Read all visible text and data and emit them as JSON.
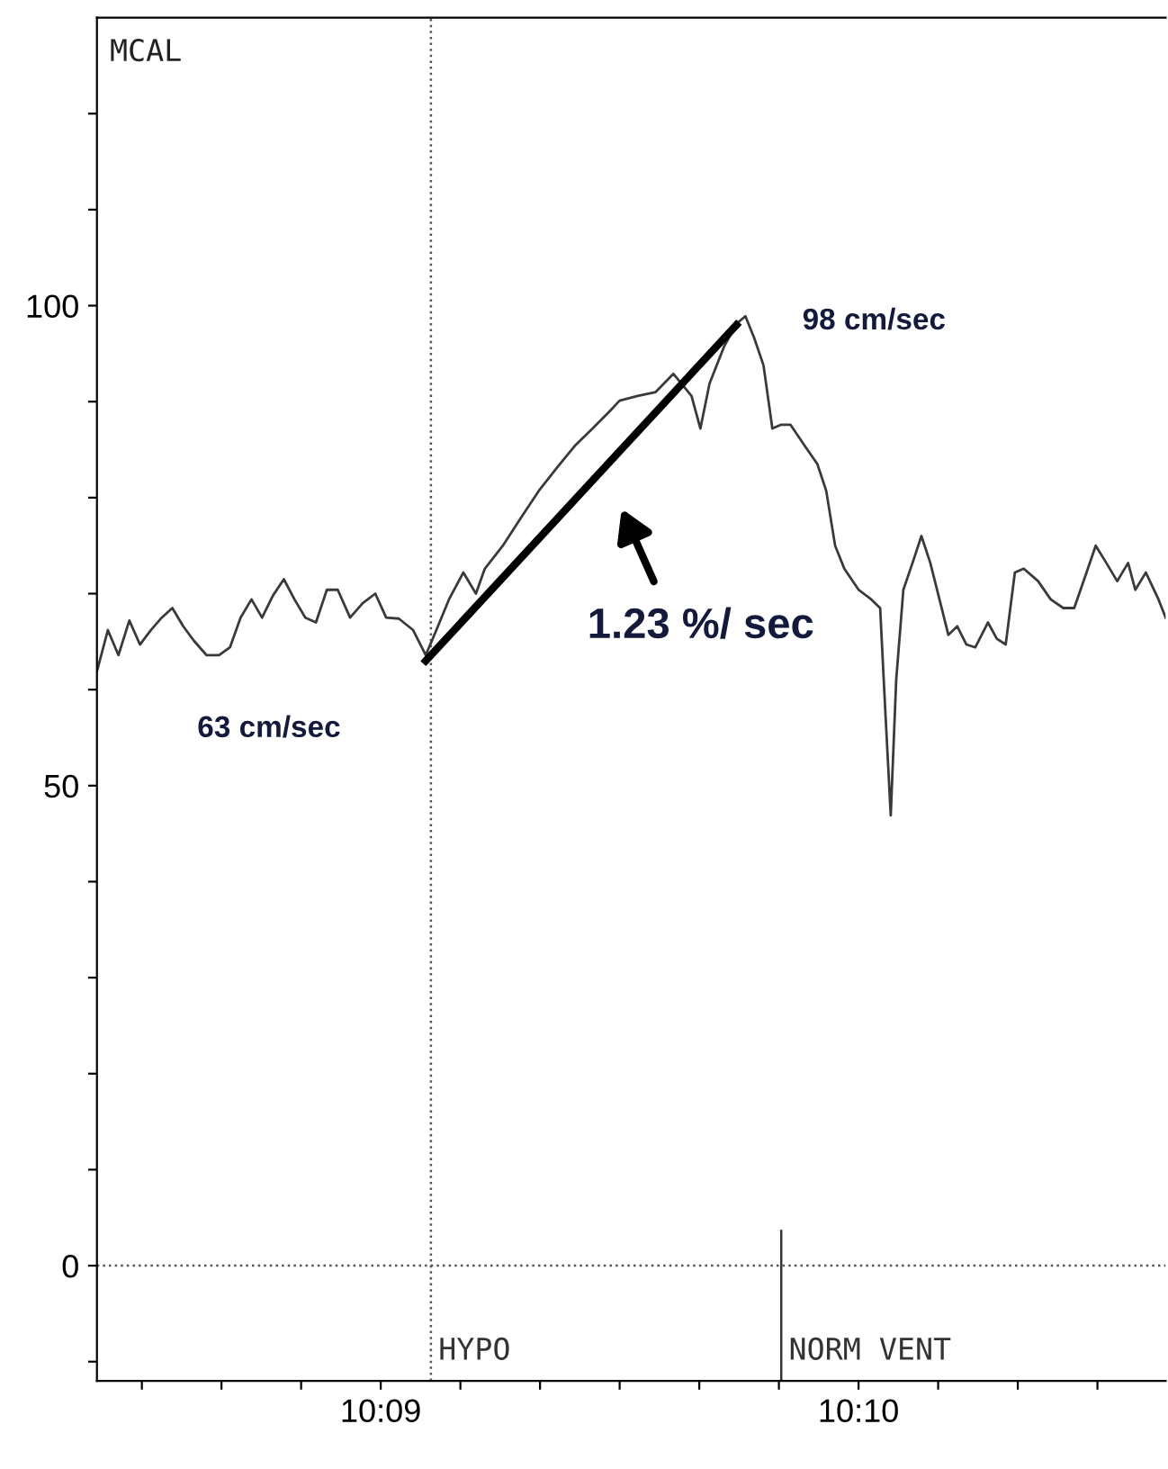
{
  "chart_data": {
    "type": "line",
    "ylabel": "MCAL",
    "xlim": [
      10.1401,
      10.17738
    ],
    "ylim": [
      -12,
      130
    ],
    "xticks": [
      {
        "value": 10.141667,
        "label": null
      },
      {
        "value": 10.144444,
        "label": null
      },
      {
        "value": 10.147222,
        "label": null
      },
      {
        "value": 10.15,
        "label": "10:09"
      },
      {
        "value": 10.152778,
        "label": null
      },
      {
        "value": 10.155556,
        "label": null
      },
      {
        "value": 10.158333,
        "label": null
      },
      {
        "value": 10.161111,
        "label": null
      },
      {
        "value": 10.163889,
        "label": null
      },
      {
        "value": 10.166667,
        "label": "10:10"
      },
      {
        "value": 10.169444,
        "label": null
      },
      {
        "value": 10.172222,
        "label": null
      },
      {
        "value": 10.175,
        "label": null
      }
    ],
    "yticks": [
      {
        "value": -10,
        "label": null
      },
      0,
      {
        "value": 10,
        "label": null
      },
      {
        "value": 20,
        "label": null
      },
      {
        "value": 30,
        "label": null
      },
      {
        "value": 40,
        "label": null
      },
      50,
      {
        "value": 60,
        "label": null
      },
      {
        "value": 70,
        "label": null
      },
      {
        "value": 80,
        "label": null
      },
      {
        "value": 90,
        "label": null
      },
      100,
      {
        "value": 110,
        "label": null
      },
      {
        "value": 120,
        "label": null
      }
    ],
    "grid": false,
    "legend": false,
    "marker": "none",
    "series": [
      {
        "color": "#3a3a3a",
        "line_style": "solid",
        "x": [
          10.1401,
          10.14048,
          10.14085,
          10.14123,
          10.1416,
          10.14198,
          10.14236,
          10.14273,
          10.14311,
          10.14348,
          10.14392,
          10.14436,
          10.14474,
          10.14511,
          10.14549,
          10.14586,
          10.14624,
          10.14662,
          10.14699,
          10.14737,
          10.14774,
          10.14812,
          10.1485,
          10.14893,
          10.14937,
          10.14981,
          10.15019,
          10.15063,
          10.15113,
          10.15157,
          10.15194,
          10.15238,
          10.15288,
          10.15332,
          10.15363,
          10.15426,
          10.15489,
          10.15551,
          10.15614,
          10.15677,
          10.15739,
          10.15802,
          10.15833,
          10.15896,
          10.15959,
          10.16021,
          10.16084,
          10.16115,
          10.16147,
          10.16197,
          10.16241,
          10.16272,
          10.16303,
          10.16335,
          10.16366,
          10.16397,
          10.16429,
          10.16479,
          10.16523,
          10.16554,
          10.16585,
          10.16617,
          10.16667,
          10.16711,
          10.16742,
          10.16761,
          10.16779,
          10.16798,
          10.16823,
          10.16855,
          10.16886,
          10.16917,
          10.16949,
          10.1698,
          10.17011,
          10.17043,
          10.17074,
          10.17118,
          10.17149,
          10.1718,
          10.17212,
          10.17243,
          10.17293,
          10.17337,
          10.17381,
          10.17419,
          10.17462,
          10.17494,
          10.17531,
          10.17569,
          10.17607,
          10.17632,
          10.17669,
          10.17713,
          10.17738
        ],
        "values": [
          61.9,
          66.2,
          63.6,
          67.2,
          64.7,
          66.2,
          67.5,
          68.5,
          66.6,
          65.1,
          63.6,
          63.6,
          64.4,
          67.5,
          69.4,
          67.5,
          69.8,
          71.5,
          69.4,
          67.5,
          67.0,
          70.4,
          70.4,
          67.5,
          69.0,
          70.0,
          67.5,
          67.4,
          66.2,
          63.6,
          66.2,
          69.4,
          72.2,
          70.0,
          72.6,
          75.0,
          77.9,
          80.7,
          83.1,
          85.4,
          87.2,
          89.1,
          90.1,
          90.6,
          91.0,
          92.9,
          90.6,
          87.2,
          91.9,
          95.7,
          98.1,
          98.9,
          96.6,
          93.8,
          87.2,
          87.6,
          87.6,
          85.4,
          83.5,
          80.7,
          75.0,
          72.6,
          70.4,
          69.4,
          68.5,
          57.2,
          46.9,
          61.0,
          70.4,
          73.2,
          76.0,
          73.2,
          69.4,
          65.7,
          66.6,
          64.7,
          64.4,
          67.0,
          65.3,
          64.7,
          72.2,
          72.6,
          71.3,
          69.4,
          68.5,
          68.5,
          72.2,
          75.0,
          73.2,
          71.3,
          73.2,
          70.4,
          72.2,
          69.4,
          67.5
        ]
      },
      {
        "color": "#000000",
        "line_style": "solid",
        "x": [
          10.15157,
          10.16241
        ],
        "values": [
          63,
          98
        ]
      }
    ],
    "ref_lines": [
      {
        "axis": "y",
        "value": 0,
        "line_style": "dotted",
        "color": "#555555"
      },
      {
        "axis": "x",
        "value": 10.15175,
        "label": "HYPO",
        "line_style": "dotted",
        "color": "#555555"
      },
      {
        "axis": "x",
        "value": 10.16397,
        "label": "NORM VENT",
        "line_style": "solid",
        "color": "#333333"
      }
    ],
    "annotations": [
      "63 cm/sec",
      "98 cm/sec",
      "1.23 %/ sec"
    ]
  }
}
